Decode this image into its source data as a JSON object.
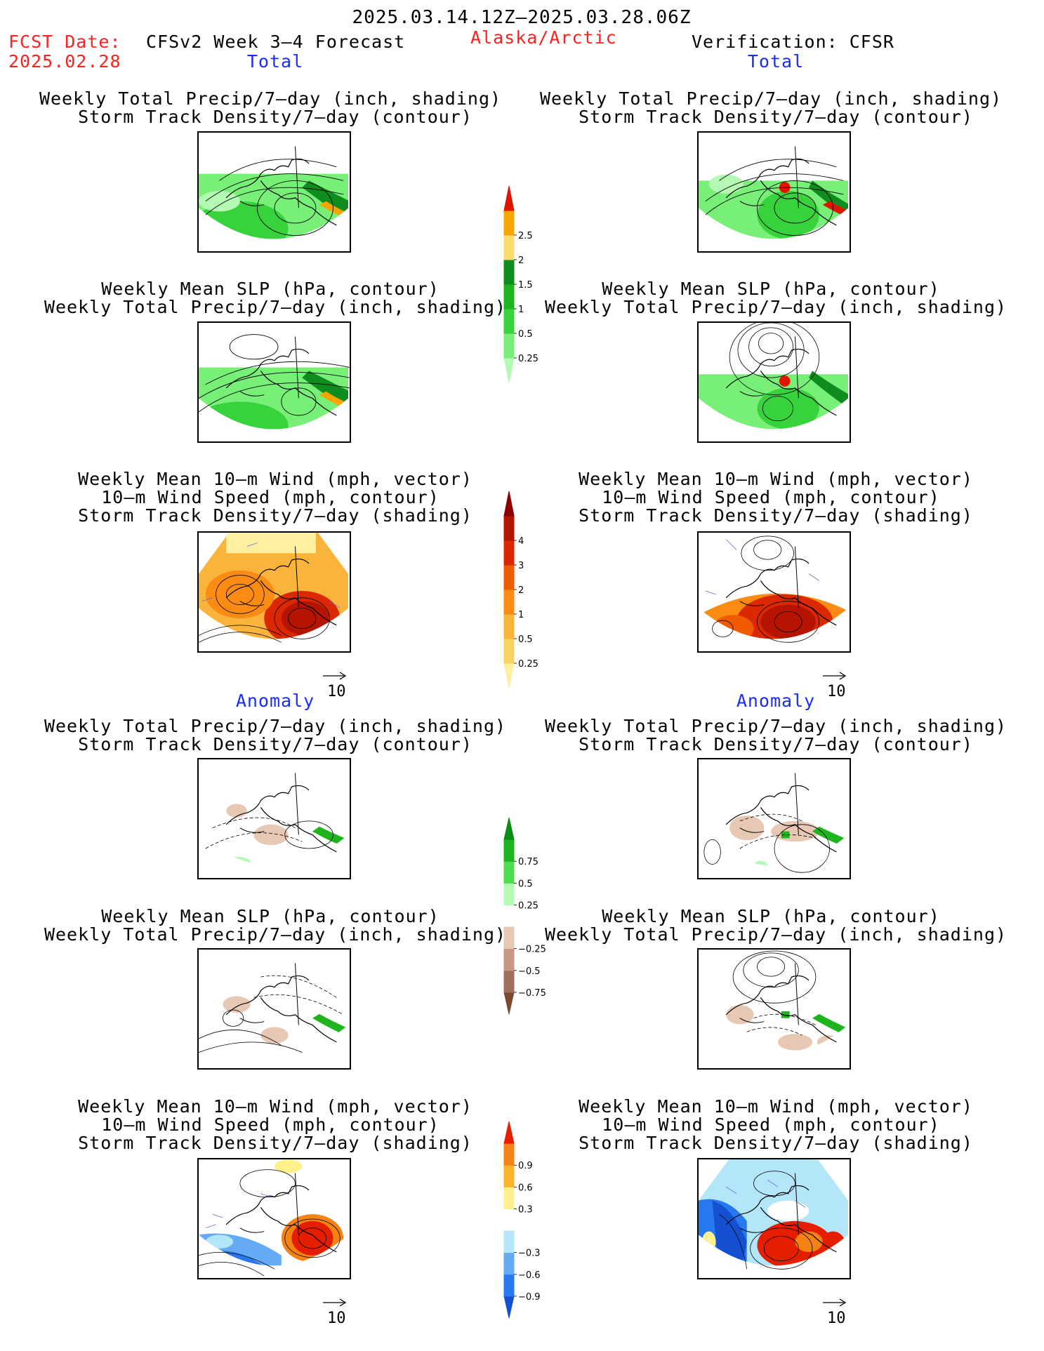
{
  "header": {
    "period": "2025.03.14.12Z–2025.03.28.06Z",
    "fcst_label": "FCST Date:",
    "fcst_date": "2025.02.28",
    "model": "CFSv2 Week 3–4 Forecast",
    "region": "Alaska/Arctic",
    "verification": "Verification: CFSR"
  },
  "sections": {
    "total_left": "Total",
    "total_right": "Total",
    "anomaly_left": "Anomaly",
    "anomaly_right": "Anomaly"
  },
  "titles": {
    "precip_track_1": "Weekly Total Precip/7–day (inch, shading)",
    "precip_track_2": "Storm Track Density/7–day (contour)",
    "slp_precip_1": "Weekly Mean SLP (hPa, contour)",
    "slp_precip_2": "Weekly Total Precip/7–day (inch, shading)",
    "wind_1": "Weekly Mean 10–m Wind (mph, vector)",
    "wind_2": "10–m Wind Speed (mph, contour)",
    "wind_3": "Storm Track Density/7–day (shading)"
  },
  "vector_ref": "10",
  "colorbars": {
    "precip_total": {
      "colors": [
        "#b4fab4",
        "#78f078",
        "#37d23c",
        "#1eb41e",
        "#0f8c1e",
        "#fadc6e",
        "#faa500",
        "#e11400"
      ],
      "labels": [
        "0.25",
        "0.5",
        "1",
        "1.5",
        "2",
        "2.5"
      ]
    },
    "track_total": {
      "colors": [
        "#fff0a0",
        "#fad264",
        "#fab43c",
        "#fa8c14",
        "#f05a00",
        "#dc2800",
        "#b41400",
        "#8c0000"
      ],
      "labels": [
        "0.25",
        "0.5",
        "1",
        "2",
        "3",
        "4"
      ]
    },
    "precip_anom": {
      "colors": [
        "#7a4a32",
        "#a0705a",
        "#c89682",
        "#e6c8b4",
        "#ffffff",
        "#b4fab4",
        "#50dc50",
        "#1eb41e",
        "#0a8c14"
      ],
      "labels": [
        "−0.75",
        "−0.5",
        "−0.25",
        "0.25",
        "0.5",
        "0.75"
      ]
    },
    "track_anom": {
      "colors": [
        "#1450d2",
        "#2878f0",
        "#64aaf5",
        "#b4e6fa",
        "#ffffff",
        "#fff08c",
        "#fab428",
        "#f58214",
        "#e61e00"
      ],
      "labels": [
        "−0.9",
        "−0.6",
        "−0.3",
        "0.3",
        "0.6",
        "0.9"
      ]
    }
  }
}
